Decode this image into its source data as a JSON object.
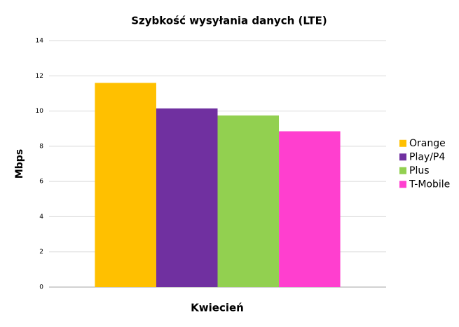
{
  "chart_data": {
    "type": "bar",
    "title": "Szybkość wysyłania danych (LTE)",
    "x_label": "Kwiecień",
    "y_label": "Mbps",
    "categories": [
      null
    ],
    "series": [
      {
        "name": "Orange",
        "color": "#ffc000",
        "values": [
          11.6
        ]
      },
      {
        "name": "Play/P4",
        "color": "#7030a0",
        "values": [
          10.15
        ]
      },
      {
        "name": "Plus",
        "color": "#92d050",
        "values": [
          9.75
        ]
      },
      {
        "name": "T-Mobile",
        "color": "#ff3fcf",
        "values": [
          8.85
        ]
      }
    ],
    "ylim": [
      0,
      14
    ],
    "yticks": [
      0,
      2,
      4,
      6,
      8,
      10,
      12,
      14
    ],
    "grid": true,
    "legend": "right"
  }
}
